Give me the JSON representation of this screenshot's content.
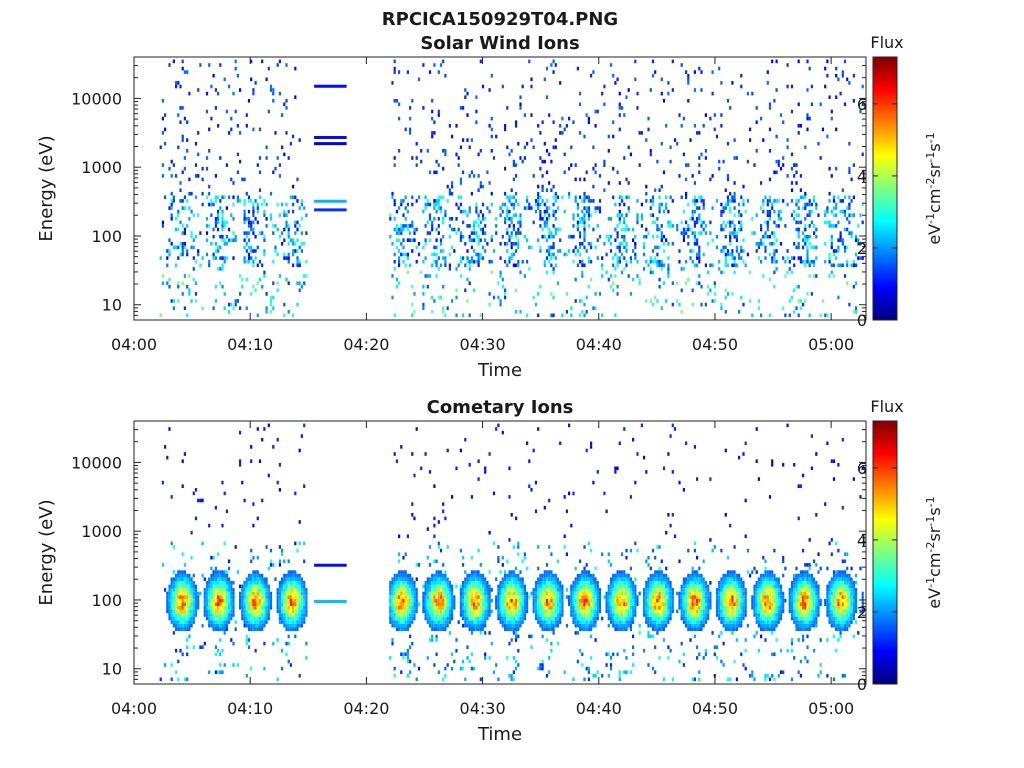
{
  "figure_title": "RPCICA150929T04.PNG",
  "colorbar_colors": [
    "#00007f",
    "#0000ff",
    "#007fff",
    "#00ffff",
    "#7fff7f",
    "#ffff00",
    "#ff7f00",
    "#ff0000",
    "#7f0000"
  ],
  "chart_data": [
    {
      "type": "heatmap",
      "title": "Solar Wind Ions",
      "xlabel": "Time",
      "ylabel": "Energy (eV)",
      "x_ticks": [
        "04:00",
        "04:10",
        "04:20",
        "04:30",
        "04:40",
        "04:50",
        "05:00"
      ],
      "y_ticks": [
        "10",
        "100",
        "1000",
        "10000"
      ],
      "yscale": "log",
      "ylim": [
        6,
        40000
      ],
      "xlim_minutes": [
        0,
        63
      ],
      "colorbar": {
        "title": "Flux",
        "label": "eV-1cm-2sr-1s-1",
        "ticks": [
          "0",
          "2",
          "4",
          "6"
        ],
        "range": [
          0,
          7.3
        ]
      },
      "data_gap_minutes": [
        18,
        21.5
      ],
      "gap_lines": [
        {
          "energy_eV": 15000,
          "flux": 1.0
        },
        {
          "energy_eV": 2700,
          "flux": 1.0
        },
        {
          "energy_eV": 2200,
          "flux": 0.8
        },
        {
          "energy_eV": 320,
          "flux": 2.2
        },
        {
          "energy_eV": 240,
          "flux": 1.3
        }
      ]
    },
    {
      "type": "heatmap",
      "title": "Cometary Ions",
      "xlabel": "Time",
      "ylabel": "Energy (eV)",
      "x_ticks": [
        "04:00",
        "04:10",
        "04:20",
        "04:30",
        "04:40",
        "04:50",
        "05:00"
      ],
      "y_ticks": [
        "10",
        "100",
        "1000",
        "10000"
      ],
      "yscale": "log",
      "ylim": [
        6,
        40000
      ],
      "xlim_minutes": [
        0,
        63
      ],
      "colorbar": {
        "title": "Flux",
        "label": "eV-1cm-2sr-1s-1",
        "ticks": [
          "0",
          "2",
          "4",
          "6"
        ],
        "range": [
          0,
          7.3
        ]
      },
      "data_gap_minutes": [
        18,
        21.5
      ],
      "gap_lines": [
        {
          "energy_eV": 320,
          "flux": 1.0
        },
        {
          "energy_eV": 95,
          "flux": 2.3
        }
      ]
    }
  ]
}
